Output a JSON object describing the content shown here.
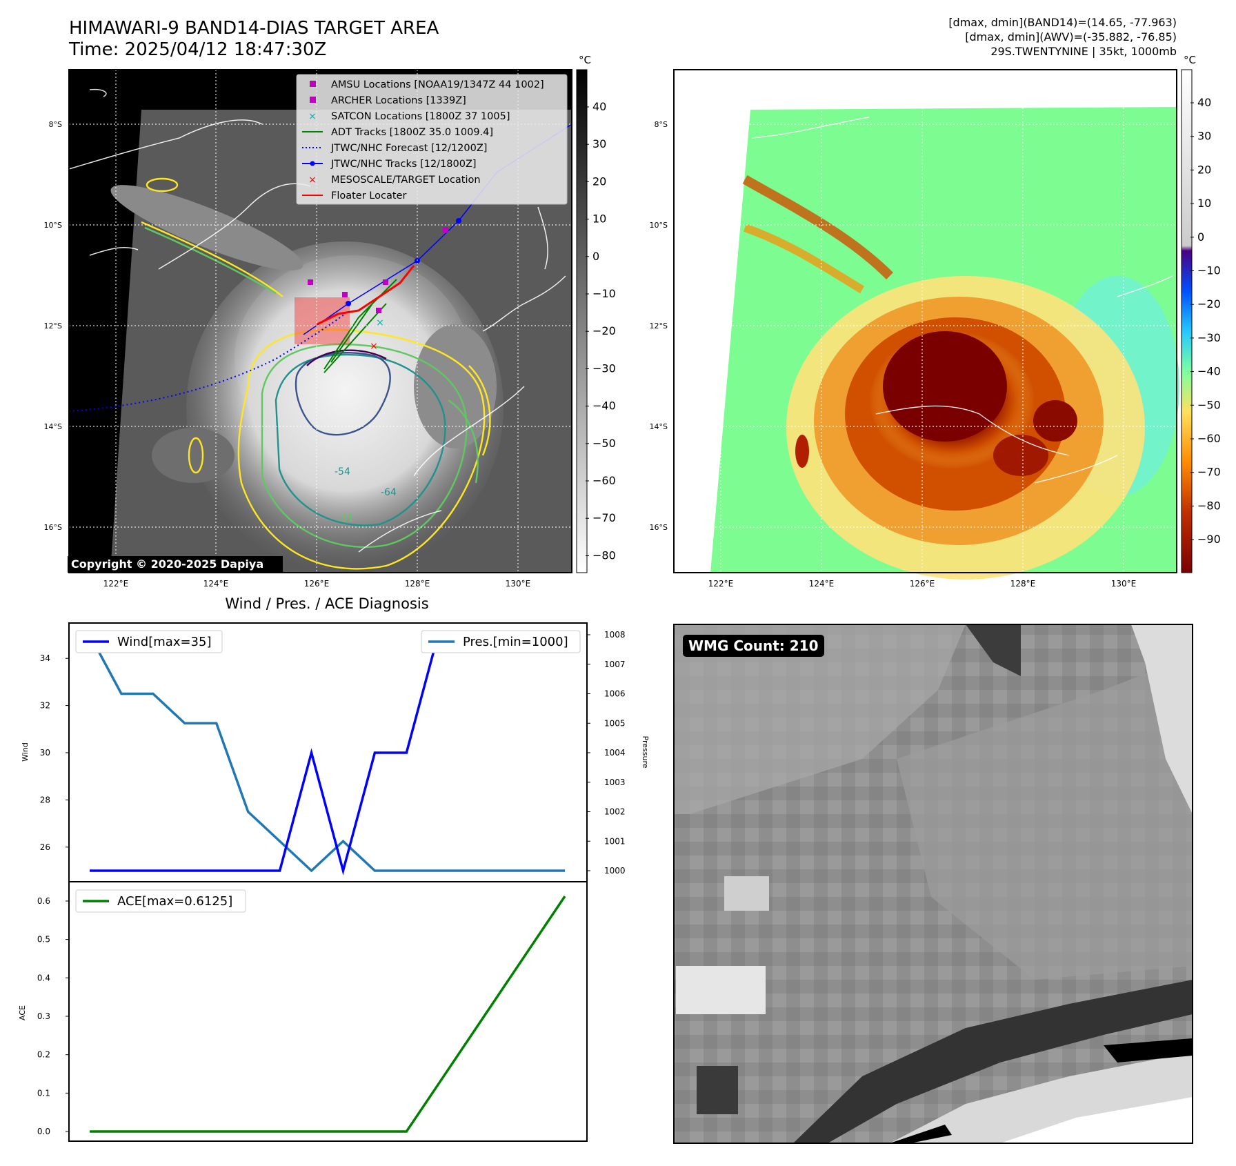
{
  "header": {
    "title_line1": "HIMAWARI-9 BAND14-DIAS TARGET AREA",
    "title_line2": "Time: 2025/04/12 18:47:30Z",
    "info_line1": "[dmax, dmin](BAND14)=(14.65, -77.963)",
    "info_line2": "[dmax, dmin](AWV)=(-35.882, -76.85)",
    "info_line3": "29S.TWENTYNINE | 35kt, 1000mb"
  },
  "map": {
    "lat_labels": [
      "8°S",
      "10°S",
      "12°S",
      "14°S",
      "16°S"
    ],
    "lon_labels": [
      "122°E",
      "124°E",
      "126°E",
      "128°E",
      "130°E"
    ],
    "copyright": "Copyright © 2020-2025 Dapiya",
    "contour_labels": [
      "-54",
      "-64",
      "-31"
    ],
    "legend": [
      {
        "label": "AMSU Locations [NOAA19/1347Z 44 1002]",
        "color": "#c000c0",
        "marker": "square"
      },
      {
        "label": "ARCHER Locations [1339Z]",
        "color": "#c000c0",
        "marker": "square"
      },
      {
        "label": "SATCON Locations [1800Z 37 1005]",
        "color": "#00b5b5",
        "marker": "x"
      },
      {
        "label": "ADT Tracks [1800Z 35.0 1009.4]",
        "color": "#008000",
        "marker": "line"
      },
      {
        "label": "JTWC/NHC Forecast [12/1200Z]",
        "color": "#0000ff",
        "marker": "dotted"
      },
      {
        "label": "JTWC/NHC Tracks [12/1800Z]",
        "color": "#0000ff",
        "marker": "line-dot"
      },
      {
        "label": "MESOSCALE/TARGET Location",
        "color": "#ff0000",
        "marker": "x"
      },
      {
        "label": "Floater Locater",
        "color": "#ff0000",
        "marker": "line"
      }
    ]
  },
  "colorbar1": {
    "unit": "°C",
    "ticks": [
      "40",
      "30",
      "20",
      "10",
      "0",
      "−10",
      "−20",
      "−30",
      "−40",
      "−50",
      "−60",
      "−70",
      "−80"
    ]
  },
  "colorbar2": {
    "unit": "°C",
    "ticks": [
      "40",
      "30",
      "20",
      "10",
      "0",
      "−10",
      "−20",
      "−30",
      "−40",
      "−50",
      "−60",
      "−70",
      "−80",
      "−90"
    ]
  },
  "wmg": {
    "badge": "WMG Count: 210"
  },
  "chart_data": [
    {
      "type": "line",
      "title": "Wind / Pres. / ACE Diagnosis",
      "ylabel": "Wind",
      "y2label": "Pressure",
      "ylim": [
        25,
        35
      ],
      "y2lim": [
        1000,
        1008
      ],
      "y_ticks": [
        "26",
        "28",
        "30",
        "32",
        "34"
      ],
      "y2_ticks": [
        "1000",
        "1001",
        "1002",
        "1003",
        "1004",
        "1005",
        "1006",
        "1007",
        "1008"
      ],
      "x": [
        0,
        1,
        2,
        3,
        4,
        5,
        6,
        7,
        8,
        9,
        10,
        11,
        12,
        13,
        14,
        15
      ],
      "series": [
        {
          "name": "Wind[max=35]",
          "color": "#0000ff",
          "axis": "left",
          "values": [
            25,
            25,
            25,
            25,
            25,
            25,
            25,
            30,
            25,
            30,
            30,
            35,
            35,
            35,
            35,
            35
          ]
        },
        {
          "name": "Pres.[min=1000]",
          "color": "#1f77b4",
          "axis": "right",
          "values": [
            1008,
            1006,
            1006,
            1005,
            1005,
            1002,
            1001,
            1000,
            1001,
            1000,
            1000,
            1000,
            1000,
            1000,
            1000,
            1000
          ]
        }
      ]
    },
    {
      "type": "line",
      "ylabel": "ACE",
      "ylim": [
        -0.03,
        0.65
      ],
      "y_ticks": [
        "0.0",
        "0.1",
        "0.2",
        "0.3",
        "0.4",
        "0.5",
        "0.6"
      ],
      "x": [
        0,
        1,
        2,
        3,
        4,
        5,
        6,
        7,
        8,
        9,
        10,
        11,
        12,
        13,
        14,
        15
      ],
      "series": [
        {
          "name": "ACE[max=0.6125]",
          "color": "#008000",
          "values": [
            0,
            0,
            0,
            0,
            0,
            0,
            0,
            0,
            0,
            0,
            0,
            0.1225,
            0.245,
            0.3675,
            0.49,
            0.6125
          ]
        }
      ]
    }
  ]
}
